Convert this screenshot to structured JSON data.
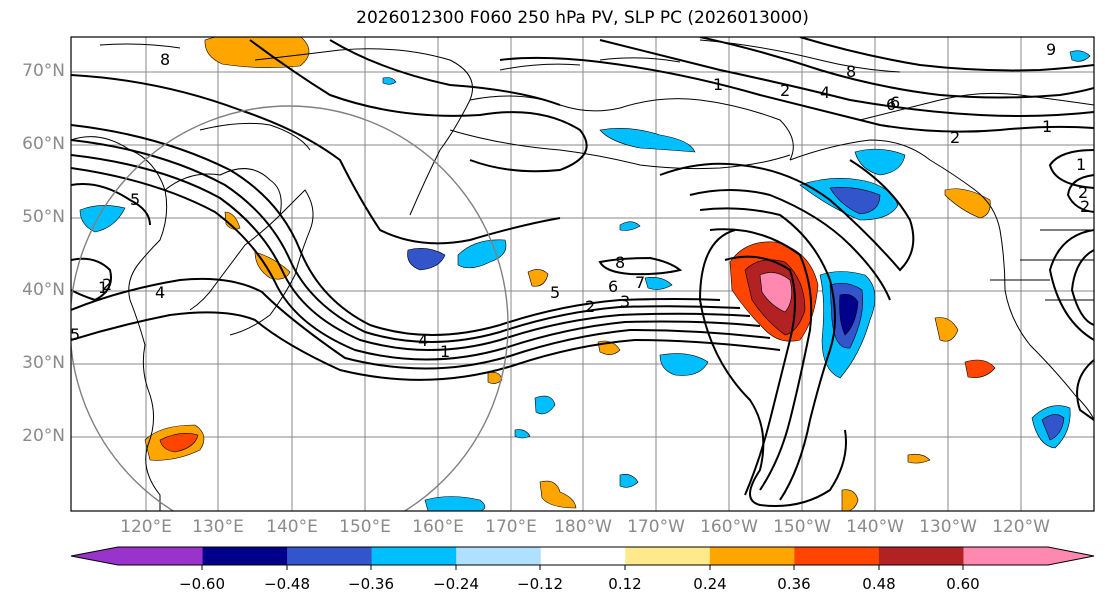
{
  "title": "2026012300 F060 250 hPa PV, SLP PC (2026013000)",
  "lat_labels": [
    "70°N",
    "60°N",
    "50°N",
    "40°N",
    "30°N",
    "20°N"
  ],
  "lon_labels": [
    "120°E",
    "130°E",
    "140°E",
    "150°E",
    "160°E",
    "170°E",
    "180°W",
    "170°W",
    "160°W",
    "150°W",
    "140°W",
    "130°W",
    "120°W"
  ],
  "colorbar": {
    "ticks": [
      "−0.60",
      "−0.48",
      "−0.36",
      "−0.24",
      "−0.12",
      "0.12",
      "0.24",
      "0.36",
      "0.48",
      "0.60"
    ],
    "colors": [
      "#9933cc",
      "#00008b",
      "#3355cc",
      "#00bfff",
      "#b0e0ff",
      "#ffffff",
      "#ffe98a",
      "#ffa500",
      "#ff4500",
      "#b22222",
      "#ff88b0"
    ]
  },
  "contour_labels": [
    "8",
    "1",
    "2",
    "4",
    "8",
    "6",
    "9",
    "5",
    "1",
    "2",
    "4",
    "5",
    "1",
    "2",
    "2",
    "1",
    "8",
    "6",
    "7",
    "5",
    "3",
    "2",
    "4",
    "1",
    "2",
    "6"
  ],
  "colors": {
    "coast": "#000000",
    "grid": "#888888",
    "circle": "#808080"
  }
}
